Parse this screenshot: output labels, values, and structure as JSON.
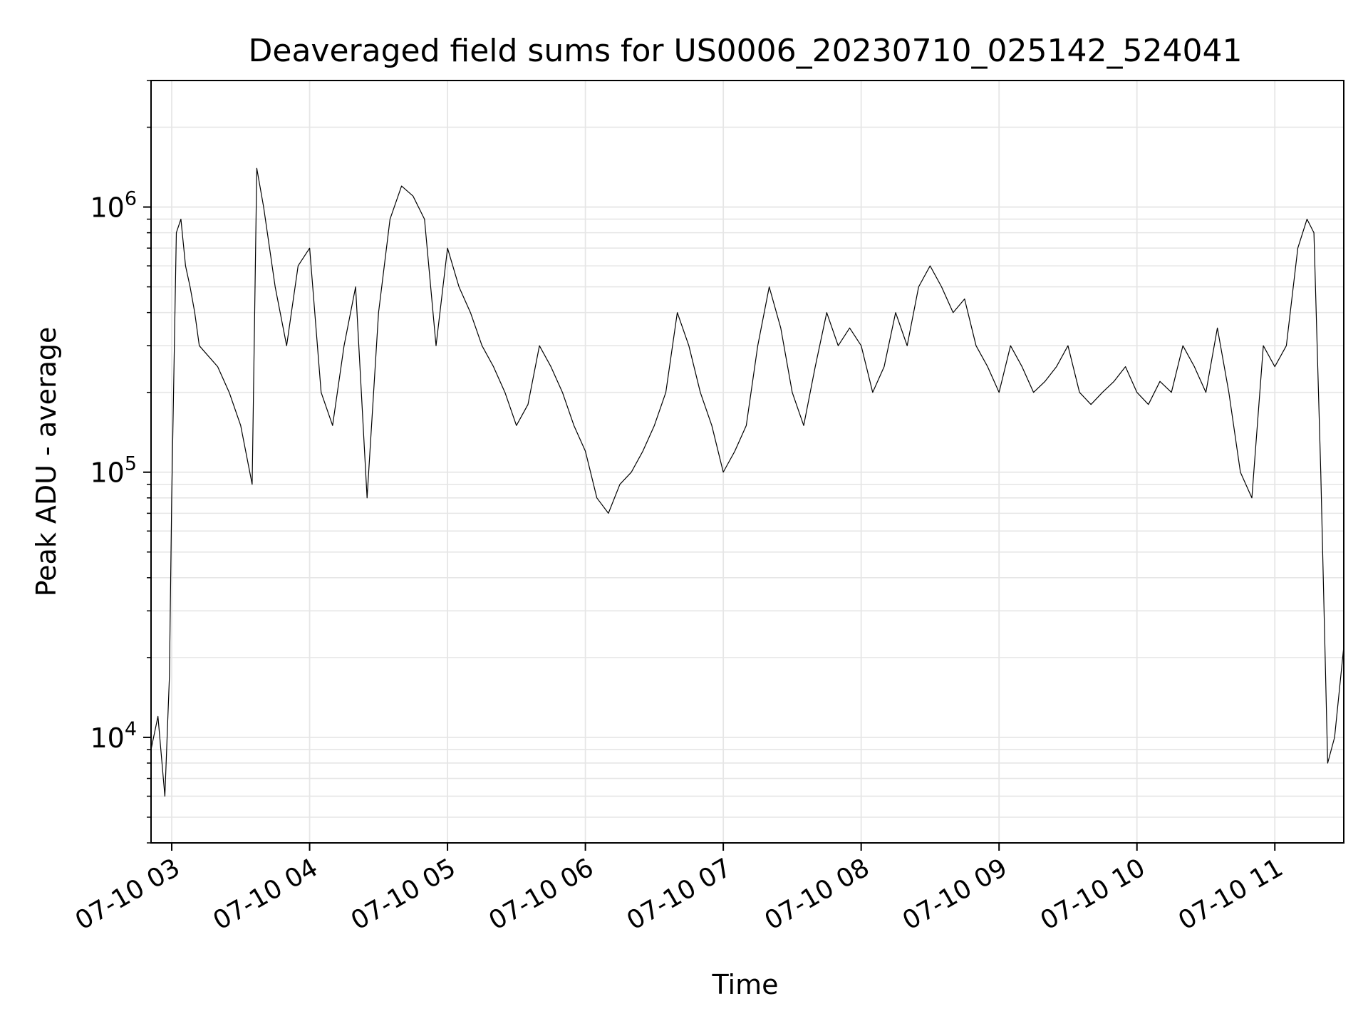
{
  "chart_data": {
    "type": "line",
    "title": "Deaveraged field sums for US0006_20230710_025142_524041",
    "xlabel": "Time",
    "ylabel": "Peak ADU - average",
    "x_axis": {
      "kind": "datetime",
      "range": [
        "2023-07-10 02:51",
        "2023-07-10 11:30"
      ],
      "ticks": [
        {
          "value": "2023-07-10 03:00",
          "label": "07-10 03"
        },
        {
          "value": "2023-07-10 04:00",
          "label": "07-10 04"
        },
        {
          "value": "2023-07-10 05:00",
          "label": "07-10 05"
        },
        {
          "value": "2023-07-10 06:00",
          "label": "07-10 06"
        },
        {
          "value": "2023-07-10 07:00",
          "label": "07-10 07"
        },
        {
          "value": "2023-07-10 08:00",
          "label": "07-10 08"
        },
        {
          "value": "2023-07-10 09:00",
          "label": "07-10 09"
        },
        {
          "value": "2023-07-10 10:00",
          "label": "07-10 10"
        },
        {
          "value": "2023-07-10 11:00",
          "label": "07-10 11"
        }
      ]
    },
    "y_axis": {
      "scale": "log",
      "range": [
        4000,
        3000000
      ],
      "major_ticks": [
        {
          "value": 10000,
          "base": "10",
          "exp": "4"
        },
        {
          "value": 100000,
          "base": "10",
          "exp": "5"
        },
        {
          "value": 1000000,
          "base": "10",
          "exp": "6"
        }
      ]
    },
    "grid": true,
    "line_color": "#000000",
    "series": [
      {
        "x": [
          "2023-07-10 02:51",
          "2023-07-10 02:54",
          "2023-07-10 02:57",
          "2023-07-10 02:59",
          "2023-07-10 03:00",
          "2023-07-10 03:02",
          "2023-07-10 03:04",
          "2023-07-10 03:06",
          "2023-07-10 03:08",
          "2023-07-10 03:10",
          "2023-07-10 03:12",
          "2023-07-10 03:15",
          "2023-07-10 03:20",
          "2023-07-10 03:25",
          "2023-07-10 03:30",
          "2023-07-10 03:35",
          "2023-07-10 03:37",
          "2023-07-10 03:40",
          "2023-07-10 03:45",
          "2023-07-10 03:50",
          "2023-07-10 03:55",
          "2023-07-10 04:00",
          "2023-07-10 04:05",
          "2023-07-10 04:10",
          "2023-07-10 04:15",
          "2023-07-10 04:20",
          "2023-07-10 04:25",
          "2023-07-10 04:30",
          "2023-07-10 04:35",
          "2023-07-10 04:40",
          "2023-07-10 04:45",
          "2023-07-10 04:50",
          "2023-07-10 04:55",
          "2023-07-10 05:00",
          "2023-07-10 05:05",
          "2023-07-10 05:10",
          "2023-07-10 05:15",
          "2023-07-10 05:20",
          "2023-07-10 05:25",
          "2023-07-10 05:30",
          "2023-07-10 05:35",
          "2023-07-10 05:40",
          "2023-07-10 05:45",
          "2023-07-10 05:50",
          "2023-07-10 05:55",
          "2023-07-10 06:00",
          "2023-07-10 06:05",
          "2023-07-10 06:10",
          "2023-07-10 06:15",
          "2023-07-10 06:20",
          "2023-07-10 06:25",
          "2023-07-10 06:30",
          "2023-07-10 06:35",
          "2023-07-10 06:40",
          "2023-07-10 06:45",
          "2023-07-10 06:50",
          "2023-07-10 06:55",
          "2023-07-10 07:00",
          "2023-07-10 07:05",
          "2023-07-10 07:10",
          "2023-07-10 07:15",
          "2023-07-10 07:20",
          "2023-07-10 07:25",
          "2023-07-10 07:30",
          "2023-07-10 07:35",
          "2023-07-10 07:40",
          "2023-07-10 07:45",
          "2023-07-10 07:50",
          "2023-07-10 07:55",
          "2023-07-10 08:00",
          "2023-07-10 08:05",
          "2023-07-10 08:10",
          "2023-07-10 08:15",
          "2023-07-10 08:20",
          "2023-07-10 08:25",
          "2023-07-10 08:30",
          "2023-07-10 08:35",
          "2023-07-10 08:40",
          "2023-07-10 08:45",
          "2023-07-10 08:50",
          "2023-07-10 08:55",
          "2023-07-10 09:00",
          "2023-07-10 09:05",
          "2023-07-10 09:10",
          "2023-07-10 09:15",
          "2023-07-10 09:20",
          "2023-07-10 09:25",
          "2023-07-10 09:30",
          "2023-07-10 09:35",
          "2023-07-10 09:40",
          "2023-07-10 09:45",
          "2023-07-10 09:50",
          "2023-07-10 09:55",
          "2023-07-10 10:00",
          "2023-07-10 10:05",
          "2023-07-10 10:10",
          "2023-07-10 10:15",
          "2023-07-10 10:20",
          "2023-07-10 10:25",
          "2023-07-10 10:30",
          "2023-07-10 10:35",
          "2023-07-10 10:40",
          "2023-07-10 10:45",
          "2023-07-10 10:50",
          "2023-07-10 10:55",
          "2023-07-10 11:00",
          "2023-07-10 11:05",
          "2023-07-10 11:10",
          "2023-07-10 11:14",
          "2023-07-10 11:17",
          "2023-07-10 11:20",
          "2023-07-10 11:23",
          "2023-07-10 11:26",
          "2023-07-10 11:30"
        ],
        "y": [
          9000,
          12000,
          6000,
          17000,
          80000,
          800000,
          900000,
          600000,
          500000,
          400000,
          300000,
          280000,
          250000,
          200000,
          150000,
          90000,
          1400000,
          1000000,
          500000,
          300000,
          600000,
          700000,
          200000,
          150000,
          300000,
          500000,
          80000,
          400000,
          900000,
          1200000,
          1100000,
          900000,
          300000,
          700000,
          500000,
          400000,
          300000,
          250000,
          200000,
          150000,
          180000,
          300000,
          250000,
          200000,
          150000,
          120000,
          80000,
          70000,
          90000,
          100000,
          120000,
          150000,
          200000,
          400000,
          300000,
          200000,
          150000,
          100000,
          120000,
          150000,
          300000,
          500000,
          350000,
          200000,
          150000,
          250000,
          400000,
          300000,
          350000,
          300000,
          200000,
          250000,
          400000,
          300000,
          500000,
          600000,
          500000,
          400000,
          450000,
          300000,
          250000,
          200000,
          300000,
          250000,
          200000,
          220000,
          250000,
          300000,
          200000,
          180000,
          200000,
          220000,
          250000,
          200000,
          180000,
          220000,
          200000,
          300000,
          250000,
          200000,
          350000,
          200000,
          100000,
          80000,
          300000,
          250000,
          300000,
          700000,
          900000,
          800000,
          100000,
          8000,
          10000,
          22000
        ]
      }
    ]
  }
}
